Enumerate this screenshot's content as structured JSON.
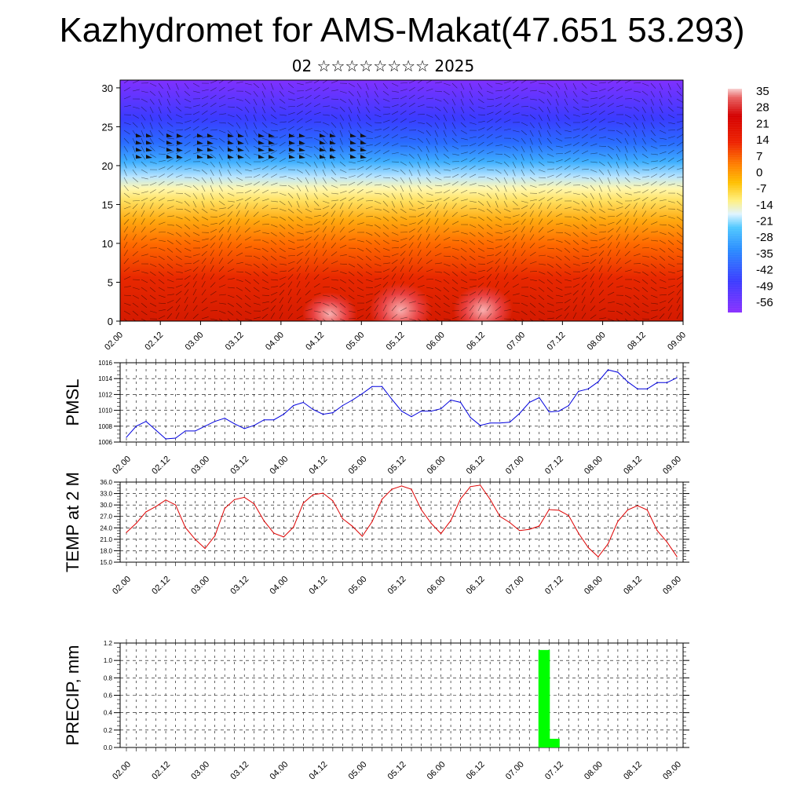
{
  "title": "Kazhydromet for AMS-Makat(47.651 53.293)",
  "subtitle": "02 ☆☆☆☆☆☆☆☆ 2025",
  "time_ticks": [
    "02.00",
    "02.12",
    "03.00",
    "03.12",
    "04.00",
    "04.12",
    "05.00",
    "05.12",
    "06.00",
    "06.12",
    "07.00",
    "07.12",
    "08.00",
    "08.12",
    "09.00"
  ],
  "colorbar": {
    "labels": [
      "35",
      "28",
      "21",
      "14",
      "7",
      "0",
      "-7",
      "-14",
      "-21",
      "-28",
      "-35",
      "-42",
      "-49",
      "-56"
    ],
    "colors": [
      "#ffffff",
      "#e83a3a",
      "#d40000",
      "#ee2200",
      "#ff8000",
      "#ffc000",
      "#fff080",
      "#d8f0ff",
      "#3fb6ff",
      "#2a7cff",
      "#3b3cff",
      "#5a20ff",
      "#8a30ff"
    ]
  },
  "chart_data": [
    {
      "type": "heatmap",
      "title": "",
      "xlabel": "",
      "ylabel": "",
      "ylim": [
        0,
        30
      ],
      "yticks": [
        0,
        5,
        10,
        15,
        20,
        25,
        30
      ],
      "description_values": "temperature cross-section with wind barbs; warm near surface, cold aloft",
      "zlim": [
        -56,
        35
      ]
    },
    {
      "type": "line",
      "ylabel": "PMSL",
      "ylim": [
        1006,
        1016
      ],
      "yticks": [
        "1006",
        "1008",
        "1010",
        "1012",
        "1014",
        "1016"
      ],
      "color": "#0000dd",
      "x": [
        0,
        3,
        6,
        9,
        12,
        15,
        18,
        21,
        24,
        27,
        30,
        33,
        36,
        39,
        42,
        45,
        48,
        51,
        54,
        57,
        60,
        63,
        66,
        69,
        72,
        75,
        78,
        81,
        84,
        87,
        90,
        93,
        96,
        99,
        102,
        105,
        108,
        111,
        114,
        117,
        120,
        123,
        126,
        129,
        132,
        135,
        138,
        141,
        144,
        147,
        150,
        153,
        156,
        159,
        162,
        165,
        168
      ],
      "values": [
        1006.6,
        1008.0,
        1008.6,
        1007.5,
        1006.4,
        1006.5,
        1007.4,
        1007.4,
        1008.0,
        1008.6,
        1009.0,
        1008.3,
        1007.7,
        1008.1,
        1008.8,
        1008.8,
        1009.5,
        1010.6,
        1011.0,
        1010.1,
        1009.5,
        1009.7,
        1010.6,
        1011.3,
        1012.1,
        1013.0,
        1013.0,
        1011.4,
        1009.9,
        1009.2,
        1009.9,
        1009.9,
        1010.2,
        1011.3,
        1011.0,
        1009.1,
        1008.1,
        1008.4,
        1008.4,
        1008.5,
        1009.6,
        1011.0,
        1011.6,
        1009.8,
        1009.9,
        1010.6,
        1012.4,
        1012.7,
        1013.6,
        1015.1,
        1014.8,
        1013.6,
        1012.7,
        1012.7,
        1013.5,
        1013.5,
        1014.1
      ]
    },
    {
      "type": "line",
      "ylabel": "TEMP at 2 M",
      "ylim": [
        15,
        36
      ],
      "yticks": [
        "15.0",
        "18.0",
        "21.0",
        "24.0",
        "27.0",
        "30.0",
        "33.0",
        "36.0"
      ],
      "color": "#dd0000",
      "x": [
        0,
        3,
        6,
        9,
        12,
        15,
        18,
        21,
        24,
        27,
        30,
        33,
        36,
        39,
        42,
        45,
        48,
        51,
        54,
        57,
        60,
        63,
        66,
        69,
        72,
        75,
        78,
        81,
        84,
        87,
        90,
        93,
        96,
        99,
        102,
        105,
        108,
        111,
        114,
        117,
        120,
        123,
        126,
        129,
        132,
        135,
        138,
        141,
        144,
        147,
        150,
        153,
        156,
        159,
        162,
        165,
        168
      ],
      "values": [
        22.8,
        25.2,
        28.2,
        29.6,
        31.3,
        30.0,
        24.1,
        21.0,
        18.6,
        21.9,
        29.1,
        31.4,
        32.0,
        30.3,
        25.8,
        22.6,
        21.6,
        24.2,
        30.5,
        32.7,
        33.1,
        31.1,
        26.4,
        24.4,
        21.8,
        25.6,
        31.5,
        34.1,
        35.0,
        34.1,
        28.8,
        25.2,
        22.5,
        25.9,
        31.6,
        34.8,
        35.2,
        31.5,
        27.0,
        25.4,
        23.3,
        23.6,
        24.5,
        28.8,
        28.6,
        27.2,
        22.6,
        18.8,
        16.4,
        19.8,
        25.7,
        28.7,
        29.8,
        28.7,
        23.3,
        20.3,
        16.5
      ]
    },
    {
      "type": "bar",
      "ylabel": "PRECIP, mm",
      "ylim": [
        0,
        1.2
      ],
      "yticks": [
        "0.0",
        "0.2",
        "0.4",
        "0.6",
        "0.8",
        "1.0",
        "1.2"
      ],
      "color": "#00ff00",
      "x": [
        126,
        129
      ],
      "values": [
        1.12,
        0.1
      ]
    }
  ]
}
